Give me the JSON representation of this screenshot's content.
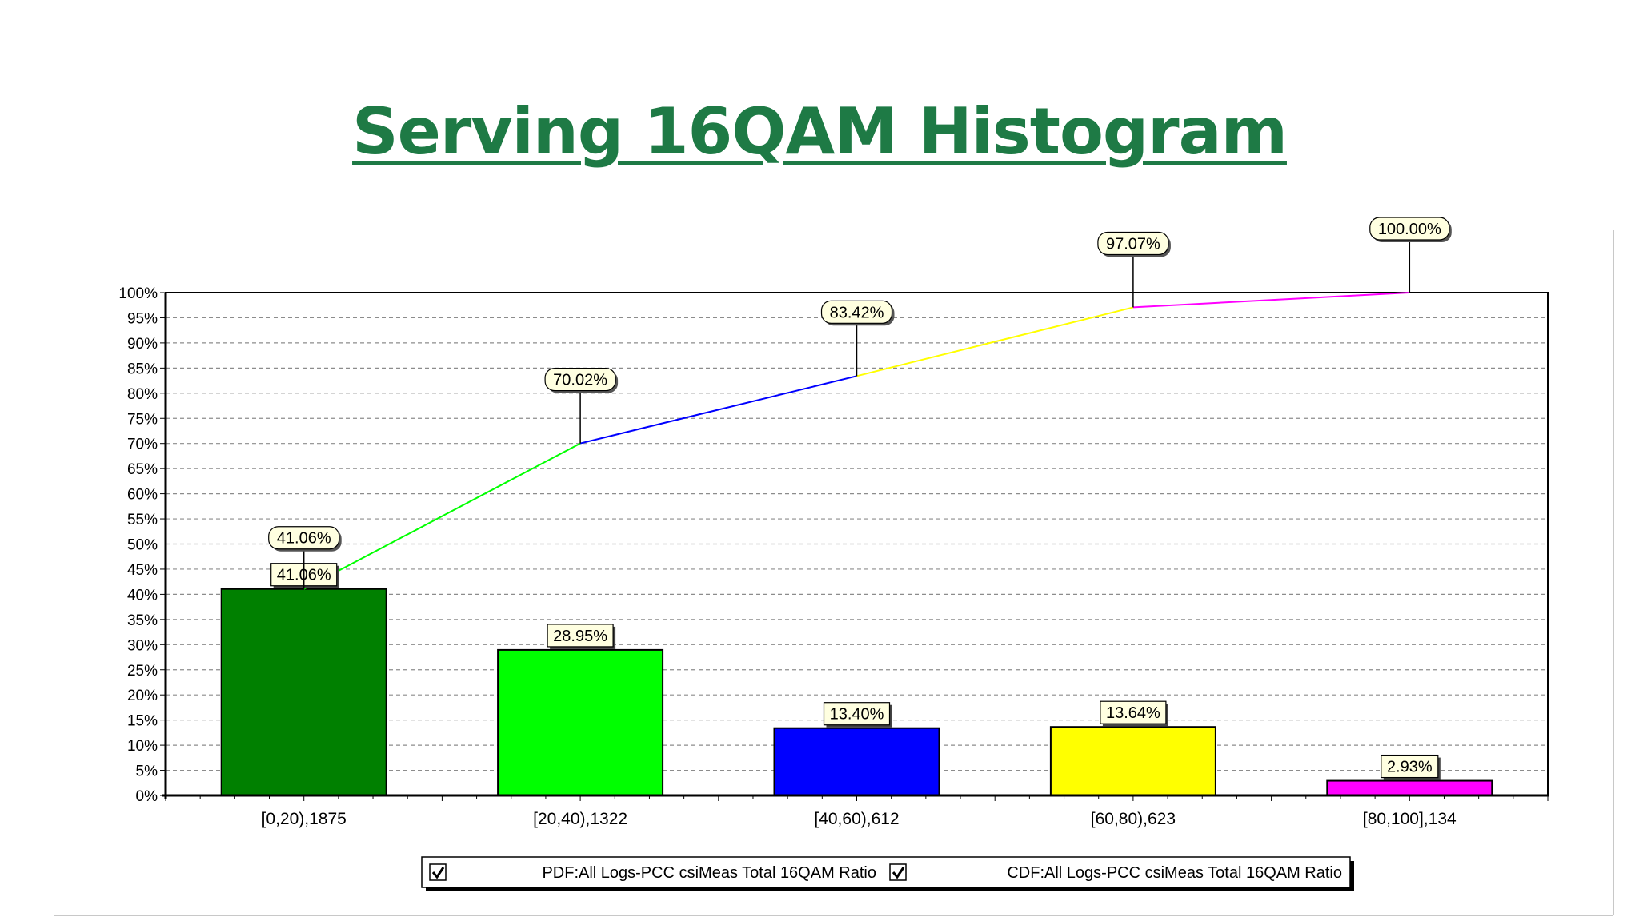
{
  "slide": {
    "title": "Serving 16QAM Histogram"
  },
  "chart_data": {
    "type": "bar",
    "categories": [
      "[0,20),1875",
      "[20,40),1322",
      "[40,60),612",
      "[60,80),623",
      "[80,100],134"
    ],
    "series": [
      {
        "name": "PDF:All Logs-PCC csiMeas Total 16QAM Ratio",
        "type": "bar",
        "values": [
          41.06,
          28.95,
          13.4,
          13.64,
          2.93
        ],
        "labels": [
          "41.06%",
          "28.95%",
          "13.40%",
          "13.64%",
          "2.93%"
        ],
        "colors": [
          "#008000",
          "#00ff00",
          "#0000ff",
          "#ffff00",
          "#ff00ff"
        ]
      },
      {
        "name": "CDF:All Logs-PCC csiMeas Total 16QAM Ratio",
        "type": "line",
        "values": [
          41.06,
          70.02,
          83.42,
          97.07,
          100.0
        ],
        "labels": [
          "41.06%",
          "70.02%",
          "83.42%",
          "97.07%",
          "100.00%"
        ],
        "segment_colors": [
          "#00ff00",
          "#0000ff",
          "#ffff00",
          "#ff00ff"
        ]
      }
    ],
    "y_ticks": [
      "0%",
      "5%",
      "10%",
      "15%",
      "20%",
      "25%",
      "30%",
      "35%",
      "40%",
      "45%",
      "50%",
      "55%",
      "60%",
      "65%",
      "70%",
      "75%",
      "80%",
      "85%",
      "90%",
      "95%",
      "100%"
    ],
    "ylim": [
      0,
      100
    ],
    "grid": true,
    "legend": {
      "position": "bottom",
      "items": [
        {
          "label": "PDF:All Logs-PCC csiMeas Total 16QAM Ratio",
          "checked": true
        },
        {
          "label": "CDF:All Logs-PCC csiMeas Total 16QAM Ratio",
          "checked": true
        }
      ]
    }
  }
}
